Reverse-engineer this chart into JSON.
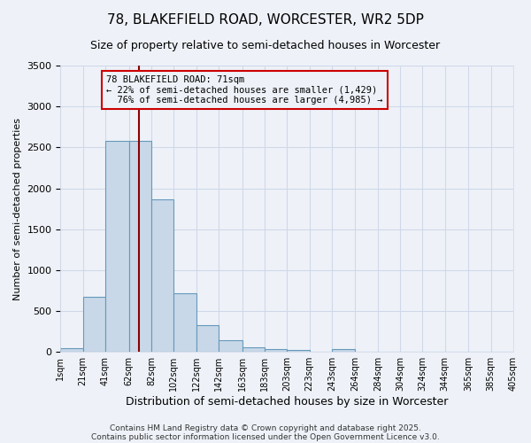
{
  "title": "78, BLAKEFIELD ROAD, WORCESTER, WR2 5DP",
  "subtitle": "Size of property relative to semi-detached houses in Worcester",
  "xlabel": "Distribution of semi-detached houses by size in Worcester",
  "ylabel": "Number of semi-detached properties",
  "footnote1": "Contains HM Land Registry data © Crown copyright and database right 2025.",
  "footnote2": "Contains public sector information licensed under the Open Government Licence v3.0.",
  "bin_labels": [
    "1sqm",
    "21sqm",
    "41sqm",
    "62sqm",
    "82sqm",
    "102sqm",
    "122sqm",
    "142sqm",
    "163sqm",
    "183sqm",
    "203sqm",
    "223sqm",
    "243sqm",
    "264sqm",
    "284sqm",
    "304sqm",
    "324sqm",
    "344sqm",
    "365sqm",
    "385sqm",
    "405sqm"
  ],
  "bin_edges": [
    1,
    21,
    41,
    62,
    82,
    102,
    122,
    142,
    163,
    183,
    203,
    223,
    243,
    264,
    284,
    304,
    324,
    344,
    365,
    385,
    405
  ],
  "bar_heights": [
    50,
    670,
    2580,
    2580,
    1870,
    720,
    330,
    140,
    60,
    30,
    20,
    5,
    30,
    5,
    5,
    5,
    0,
    0,
    0,
    0
  ],
  "bar_color": "#c8d8e8",
  "bar_edge_color": "#6699bb",
  "property_size": 71,
  "vline_color": "#8b0000",
  "vline_label": "78 BLAKEFIELD ROAD: 71sqm",
  "pct_smaller": 22,
  "pct_larger": 76,
  "count_smaller": 1429,
  "count_larger": 4985,
  "ylim": [
    0,
    3500
  ],
  "yticks": [
    0,
    500,
    1000,
    1500,
    2000,
    2500,
    3000,
    3500
  ],
  "annotation_box_color": "#cc0000",
  "grid_color": "#d0d8e8",
  "bg_color": "#eef2f8"
}
